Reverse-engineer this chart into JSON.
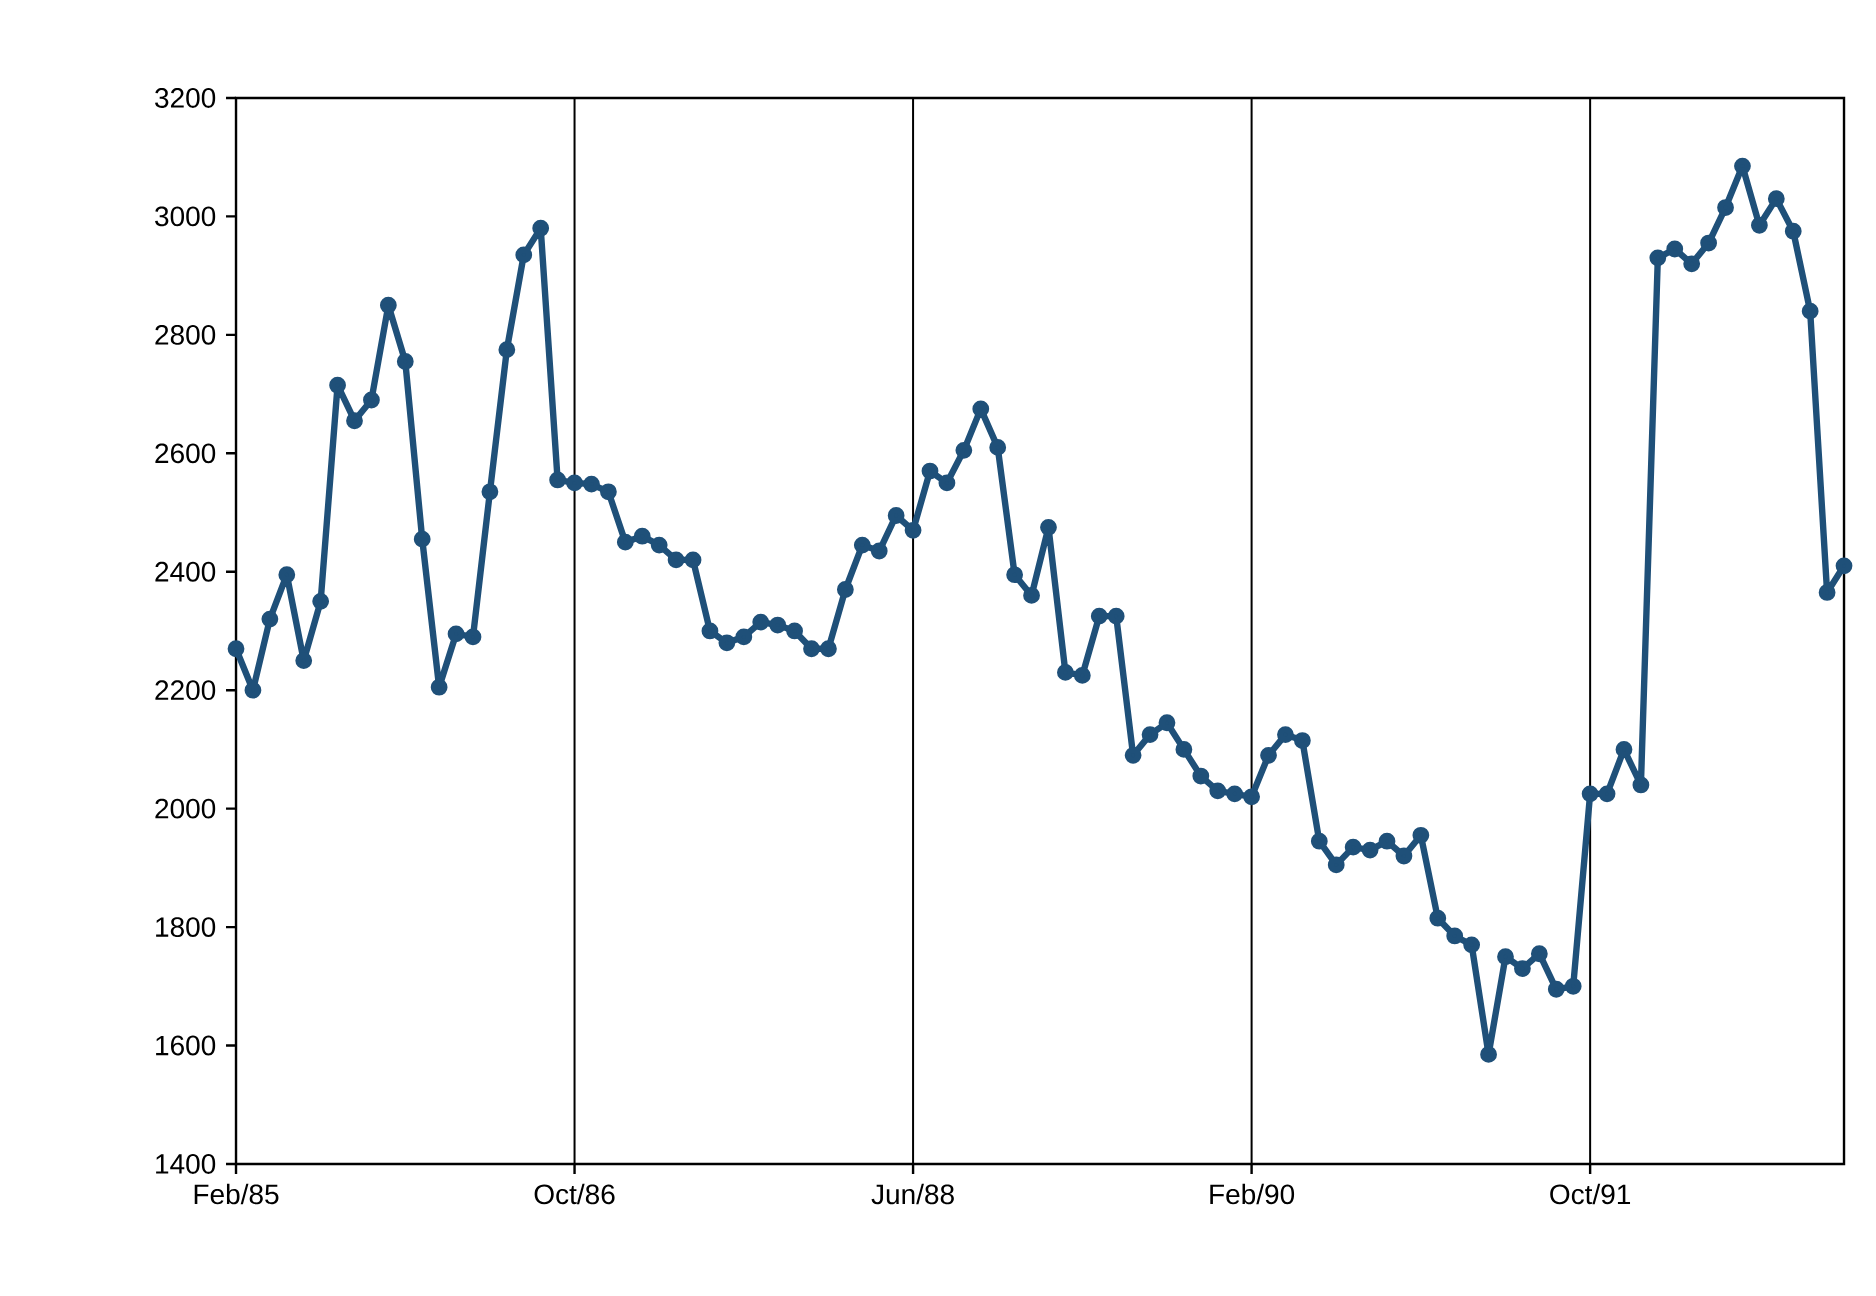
{
  "chart_data": {
    "type": "line",
    "x": [
      "1985-02",
      "1985-03",
      "1985-04",
      "1985-05",
      "1985-06",
      "1985-07",
      "1985-08",
      "1985-09",
      "1985-10",
      "1985-11",
      "1985-12",
      "1986-01",
      "1986-02",
      "1986-03",
      "1986-04",
      "1986-05",
      "1986-06",
      "1986-07",
      "1986-08",
      "1986-09",
      "1986-10",
      "1986-11",
      "1986-12",
      "1987-01",
      "1987-02",
      "1987-03",
      "1987-04",
      "1987-05",
      "1987-06",
      "1987-07",
      "1987-08",
      "1987-09",
      "1987-10",
      "1987-11",
      "1987-12",
      "1988-01",
      "1988-02",
      "1988-03",
      "1988-04",
      "1988-05",
      "1988-06",
      "1988-07",
      "1988-08",
      "1988-09",
      "1988-10",
      "1988-11",
      "1988-12",
      "1989-01",
      "1989-02",
      "1989-03",
      "1989-04",
      "1989-05",
      "1989-06",
      "1989-07",
      "1989-08",
      "1989-09",
      "1989-10",
      "1989-11",
      "1989-12",
      "1990-01",
      "1990-02",
      "1990-03",
      "1990-04",
      "1990-05",
      "1990-06",
      "1990-07",
      "1990-08",
      "1990-09",
      "1990-10",
      "1990-11",
      "1990-12",
      "1991-01",
      "1991-02",
      "1991-03",
      "1991-04",
      "1991-05",
      "1991-06",
      "1991-07",
      "1991-08",
      "1991-09",
      "1991-10",
      "1991-11",
      "1991-12",
      "1992-01",
      "1992-02",
      "1992-03",
      "1992-04",
      "1992-05",
      "1992-06",
      "1992-07",
      "1992-08",
      "1992-09",
      "1992-10",
      "1992-11",
      "1992-12",
      "1993-01"
    ],
    "series": [
      {
        "color": "#1f5079",
        "values": [
          2270,
          2200,
          2320,
          2395,
          2250,
          2350,
          2715,
          2655,
          2690,
          2850,
          2755,
          2455,
          2205,
          2295,
          2290,
          2535,
          2775,
          2935,
          2980,
          2555,
          2550,
          2548,
          2535,
          2450,
          2460,
          2445,
          2420,
          2420,
          2300,
          2280,
          2290,
          2315,
          2310,
          2300,
          2270,
          2270,
          2370,
          2445,
          2435,
          2495,
          2470,
          2570,
          2550,
          2605,
          2675,
          2610,
          2395,
          2360,
          2475,
          2230,
          2225,
          2325,
          2325,
          2090,
          2125,
          2145,
          2100,
          2055,
          2030,
          2025,
          2020,
          2090,
          2125,
          2115,
          1945,
          1905,
          1935,
          1930,
          1945,
          1920,
          1955,
          1815,
          1785,
          1770,
          1585,
          1750,
          1730,
          1755,
          1695,
          1700,
          2025,
          2025,
          2100,
          2040,
          2930,
          2945,
          2920,
          2955,
          3015,
          3085,
          2985,
          3030,
          2975,
          2840,
          2365,
          2410
        ]
      }
    ],
    "xlim": [
      "1985-02",
      "1993-01"
    ],
    "xticks": [
      {
        "value": "1985-02",
        "label": "Feb/85"
      },
      {
        "value": "1986-10",
        "label": "Oct/86"
      },
      {
        "value": "1988-06",
        "label": "Jun/88"
      },
      {
        "value": "1990-02",
        "label": "Feb/90"
      },
      {
        "value": "1991-10",
        "label": "Oct/91"
      }
    ],
    "ylim": [
      1400,
      3200
    ],
    "yticks": [
      1400,
      1600,
      1800,
      2000,
      2200,
      2400,
      2600,
      2800,
      3000,
      3200
    ],
    "grid": "x",
    "marker": "circle",
    "line_style": "solid"
  }
}
